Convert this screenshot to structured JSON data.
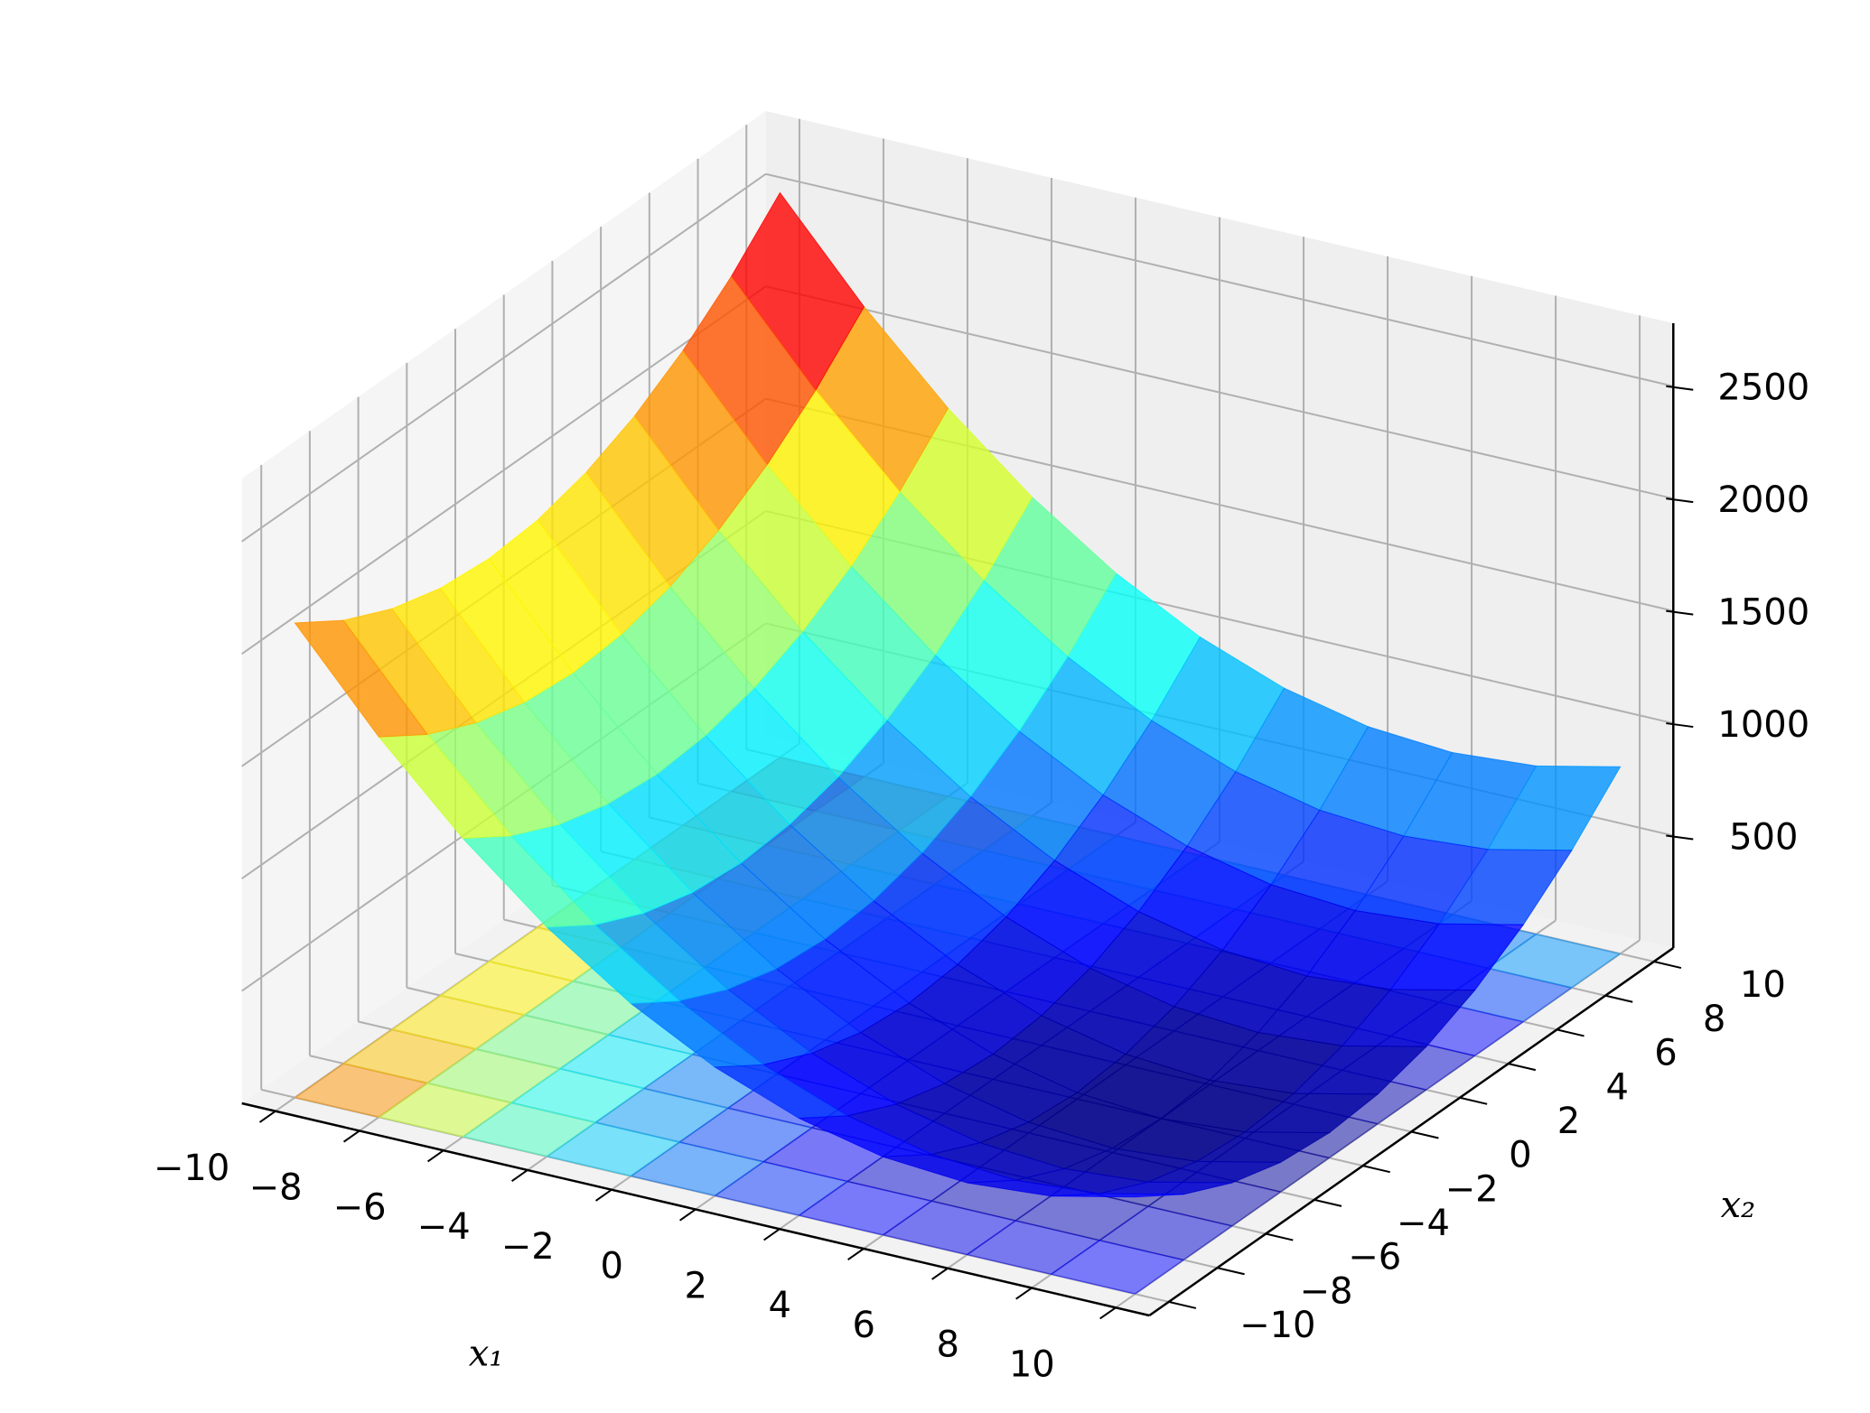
{
  "chart_data": {
    "type": "surface",
    "xlabel": "x₁",
    "ylabel": "x₂",
    "x": [
      -10,
      -8,
      -6,
      -4,
      -2,
      0,
      2,
      4,
      6,
      8,
      10
    ],
    "y": [
      -10,
      -8,
      -6,
      -4,
      -2,
      0,
      2,
      4,
      6,
      8,
      10
    ],
    "z": [
      [
        2112,
        1972,
        1872,
        1812,
        1792,
        1812,
        1872,
        1972,
        2112,
        2292,
        2512
      ],
      [
        1692,
        1552,
        1452,
        1392,
        1372,
        1392,
        1452,
        1552,
        1692,
        1872,
        2092
      ],
      [
        1328,
        1188,
        1088,
        1028,
        1008,
        1028,
        1088,
        1188,
        1328,
        1508,
        1728
      ],
      [
        1020,
        880,
        780,
        720,
        700,
        720,
        780,
        880,
        1020,
        1200,
        1420
      ],
      [
        768,
        628,
        528,
        468,
        448,
        468,
        528,
        628,
        768,
        948,
        1168
      ],
      [
        572,
        432,
        332,
        272,
        252,
        272,
        332,
        432,
        572,
        752,
        972
      ],
      [
        432,
        292,
        192,
        132,
        112,
        132,
        192,
        292,
        432,
        612,
        832
      ],
      [
        348,
        208,
        108,
        48,
        28,
        48,
        108,
        208,
        348,
        528,
        748
      ],
      [
        320,
        180,
        80,
        20,
        0,
        20,
        80,
        180,
        320,
        500,
        720
      ],
      [
        348,
        208,
        108,
        48,
        28,
        48,
        108,
        208,
        348,
        528,
        748
      ],
      [
        432,
        292,
        192,
        132,
        112,
        132,
        192,
        292,
        432,
        612,
        832
      ]
    ],
    "colormap": "jet",
    "xlim": [
      -10.8,
      10.8
    ],
    "ylim": [
      -10.8,
      10.8
    ],
    "zlim": [
      0,
      2780
    ],
    "xticks": [
      {
        "value": -10,
        "label": "−10"
      },
      {
        "value": -8,
        "label": "−8"
      },
      {
        "value": -6,
        "label": "−6"
      },
      {
        "value": -4,
        "label": "−4"
      },
      {
        "value": -2,
        "label": "−2"
      },
      0,
      2,
      4,
      6,
      8,
      10
    ],
    "yticks": [
      {
        "value": -10,
        "label": "−10"
      },
      {
        "value": -8,
        "label": "−8"
      },
      {
        "value": -6,
        "label": "−6"
      },
      {
        "value": -4,
        "label": "−4"
      },
      {
        "value": -2,
        "label": "−2"
      },
      0,
      2,
      4,
      6,
      8,
      10
    ],
    "zticks": [
      500,
      1000,
      1500,
      2000,
      2500
    ],
    "grid": true
  }
}
